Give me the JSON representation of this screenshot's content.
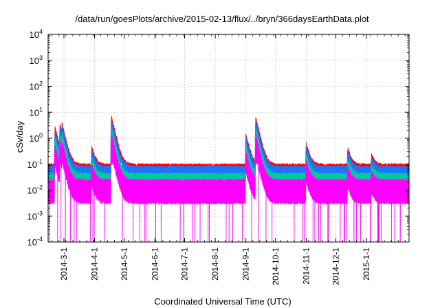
{
  "chart_data": {
    "type": "line",
    "title": "/data/run/goesPlots/archive/2015-02-13/flux/../bryn/366daysEarthData.plot",
    "xlabel": "Coordinated Universal Time (UTC)",
    "ylabel": "cSv/day",
    "yscale": "log",
    "ylim": [
      0.0001,
      10000
    ],
    "xlim": [
      "2014-02-13",
      "2015-02-13"
    ],
    "grid": true,
    "legend": "none",
    "x_ticks": [
      "2014-3-1",
      "2014-4-1",
      "2014-5-1",
      "2014-6-1",
      "2014-7-1",
      "2014-8-1",
      "2014-9-1",
      "2014-10-1",
      "2014-11-1",
      "2014-12-1",
      "2015-1-1"
    ],
    "y_ticks": [
      {
        "value": 0.0001,
        "base": "10",
        "exp": "-4"
      },
      {
        "value": 0.001,
        "base": "10",
        "exp": "-3"
      },
      {
        "value": 0.01,
        "base": "10",
        "exp": "-2"
      },
      {
        "value": 0.1,
        "base": "10",
        "exp": "-1"
      },
      {
        "value": 1,
        "base": "10",
        "exp": "0"
      },
      {
        "value": 10,
        "base": "10",
        "exp": "1"
      },
      {
        "value": 100,
        "base": "10",
        "exp": "2"
      },
      {
        "value": 1000,
        "base": "10",
        "exp": "3"
      },
      {
        "value": 10000,
        "base": "10",
        "exp": "4"
      }
    ],
    "series": [
      {
        "color": "#ff0000",
        "baseline": 0.08,
        "floor": 0.06
      },
      {
        "color": "#1e74ff",
        "baseline": 0.065,
        "floor": 0.045
      },
      {
        "color": "#00c8a0",
        "baseline": 0.035,
        "floor": 0.025
      },
      {
        "color": "#ff00ff",
        "baseline": 0.02,
        "floor": 0.0035
      }
    ],
    "events": [
      {
        "date": "2014-02-20",
        "peak": 2.3
      },
      {
        "date": "2014-02-25",
        "peak": 3.0
      },
      {
        "date": "2014-02-27",
        "peak": 3.2
      },
      {
        "date": "2014-03-29",
        "peak": 0.4
      },
      {
        "date": "2014-04-18",
        "peak": 6.0
      },
      {
        "date": "2014-09-01",
        "peak": 1.2
      },
      {
        "date": "2014-09-11",
        "peak": 5.5
      },
      {
        "date": "2014-11-01",
        "peak": 0.55
      },
      {
        "date": "2014-12-13",
        "peak": 0.35
      },
      {
        "date": "2015-01-06",
        "peak": 0.2
      }
    ]
  }
}
